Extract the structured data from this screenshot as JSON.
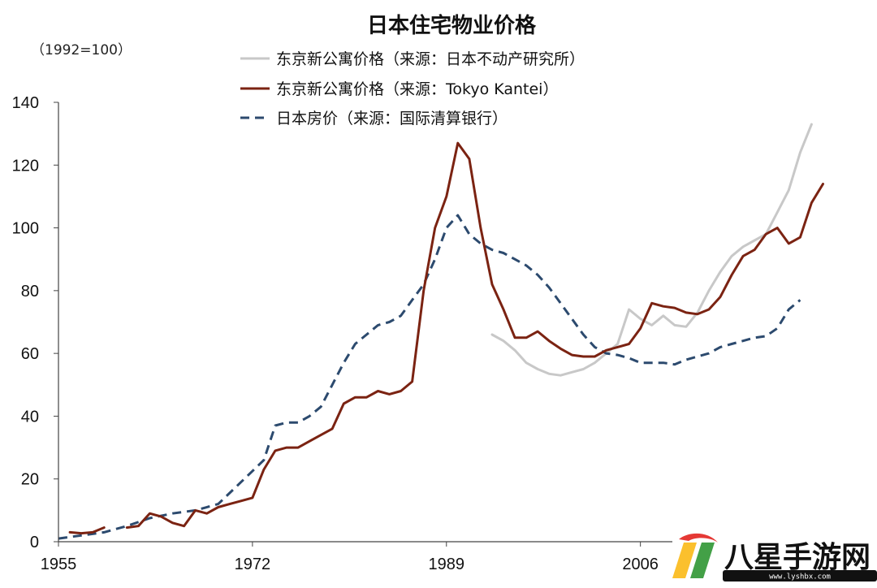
{
  "chart_data": {
    "type": "line",
    "title": "日本住宅物业价格",
    "unit_label": "（1992=100）",
    "ylim": [
      0,
      140
    ],
    "y_ticks": [
      0,
      20,
      40,
      60,
      80,
      100,
      120,
      140
    ],
    "x_range": [
      1955,
      2016
    ],
    "x_ticks": [
      1955,
      1972,
      1989,
      2006
    ],
    "grid": false,
    "legend_position": "top-center",
    "series": [
      {
        "name": "东京新公寓价格（来源：日本不动产研究所）",
        "color": "#c8c8c8",
        "style": "solid",
        "points": [
          [
            1993,
            66
          ],
          [
            1994,
            64
          ],
          [
            1995,
            61
          ],
          [
            1996,
            57
          ],
          [
            1997,
            55
          ],
          [
            1998,
            53.5
          ],
          [
            1999,
            53
          ],
          [
            2000,
            54
          ],
          [
            2001,
            55
          ],
          [
            2002,
            57
          ],
          [
            2003,
            60
          ],
          [
            2004,
            63
          ],
          [
            2005,
            74
          ],
          [
            2006,
            71
          ],
          [
            2007,
            69
          ],
          [
            2008,
            72
          ],
          [
            2009,
            69
          ],
          [
            2010,
            68.5
          ],
          [
            2011,
            73
          ],
          [
            2012,
            80
          ],
          [
            2013,
            86
          ],
          [
            2014,
            91
          ],
          [
            2015,
            94
          ],
          [
            2016,
            96
          ],
          [
            2017,
            98
          ],
          [
            2018,
            105
          ],
          [
            2019,
            112
          ],
          [
            2020,
            124
          ],
          [
            2021,
            133
          ]
        ]
      },
      {
        "name": "东京新公寓价格（来源：Tokyo Kantei）",
        "color": "#7b2312",
        "style": "solid",
        "points": [
          [
            1956,
            3
          ],
          [
            1957,
            2.7
          ],
          [
            1958,
            3
          ],
          [
            1959,
            4.5
          ],
          [
            1960,
            null
          ],
          [
            1961,
            4.5
          ],
          [
            1962,
            5
          ],
          [
            1963,
            9
          ],
          [
            1964,
            8
          ],
          [
            1965,
            6
          ],
          [
            1966,
            5
          ],
          [
            1967,
            10
          ],
          [
            1968,
            9
          ],
          [
            1969,
            11
          ],
          [
            1970,
            12
          ],
          [
            1971,
            13
          ],
          [
            1972,
            14
          ],
          [
            1973,
            23
          ],
          [
            1974,
            29
          ],
          [
            1975,
            30
          ],
          [
            1976,
            30
          ],
          [
            1977,
            32
          ],
          [
            1978,
            34
          ],
          [
            1979,
            36
          ],
          [
            1980,
            44
          ],
          [
            1981,
            46
          ],
          [
            1982,
            46
          ],
          [
            1983,
            48
          ],
          [
            1984,
            47
          ],
          [
            1985,
            48
          ],
          [
            1986,
            51
          ],
          [
            1987,
            80
          ],
          [
            1988,
            100
          ],
          [
            1989,
            110
          ],
          [
            1990,
            127
          ],
          [
            1991,
            122
          ],
          [
            1992,
            100
          ],
          [
            1993,
            82
          ],
          [
            1994,
            74
          ],
          [
            1995,
            65
          ],
          [
            1996,
            65
          ],
          [
            1997,
            67
          ],
          [
            1998,
            64
          ],
          [
            1999,
            61.5
          ],
          [
            2000,
            59.5
          ],
          [
            2001,
            59
          ],
          [
            2002,
            59
          ],
          [
            2003,
            61
          ],
          [
            2004,
            62
          ],
          [
            2005,
            63
          ],
          [
            2006,
            68
          ],
          [
            2007,
            76
          ],
          [
            2008,
            75
          ],
          [
            2009,
            74.5
          ],
          [
            2010,
            73
          ],
          [
            2011,
            72.5
          ],
          [
            2012,
            74
          ],
          [
            2013,
            78
          ],
          [
            2014,
            85
          ],
          [
            2015,
            91
          ],
          [
            2016,
            93
          ],
          [
            2017,
            98
          ],
          [
            2018,
            100
          ],
          [
            2019,
            95
          ],
          [
            2020,
            97
          ],
          [
            2021,
            108
          ],
          [
            2022,
            114
          ]
        ]
      },
      {
        "name": "日本房价（来源：国际清算银行）",
        "color": "#2c4a6e",
        "style": "dashed",
        "points": [
          [
            1955,
            1
          ],
          [
            1957,
            2
          ],
          [
            1959,
            3
          ],
          [
            1961,
            5
          ],
          [
            1963,
            7.5
          ],
          [
            1965,
            9
          ],
          [
            1967,
            10
          ],
          [
            1969,
            12
          ],
          [
            1971,
            19
          ],
          [
            1973,
            26
          ],
          [
            1974,
            37
          ],
          [
            1975,
            38
          ],
          [
            1976,
            38
          ],
          [
            1977,
            40
          ],
          [
            1978,
            43
          ],
          [
            1979,
            50
          ],
          [
            1980,
            57
          ],
          [
            1981,
            63
          ],
          [
            1982,
            66
          ],
          [
            1983,
            69
          ],
          [
            1984,
            70
          ],
          [
            1985,
            72
          ],
          [
            1986,
            77
          ],
          [
            1987,
            82
          ],
          [
            1988,
            90
          ],
          [
            1989,
            100
          ],
          [
            1990,
            104
          ],
          [
            1991,
            98
          ],
          [
            1992,
            95
          ],
          [
            1993,
            93
          ],
          [
            1994,
            92
          ],
          [
            1995,
            90
          ],
          [
            1996,
            88
          ],
          [
            1997,
            85
          ],
          [
            1998,
            81
          ],
          [
            1999,
            76
          ],
          [
            2000,
            71
          ],
          [
            2001,
            66
          ],
          [
            2002,
            62
          ],
          [
            2003,
            60
          ],
          [
            2004,
            59.5
          ],
          [
            2005,
            58.5
          ],
          [
            2006,
            57
          ],
          [
            2007,
            57
          ],
          [
            2008,
            57
          ],
          [
            2009,
            56.5
          ],
          [
            2010,
            58
          ],
          [
            2011,
            59
          ],
          [
            2012,
            60
          ],
          [
            2013,
            62
          ],
          [
            2014,
            63
          ],
          [
            2015,
            64
          ],
          [
            2016,
            65
          ],
          [
            2017,
            65.5
          ],
          [
            2018,
            68
          ],
          [
            2019,
            74
          ],
          [
            2020,
            77
          ]
        ]
      }
    ]
  },
  "watermark": {
    "brand_text": "八星手游网",
    "url_text": "www.lyshbx.com",
    "colors": [
      "#e53935",
      "#fbc02d",
      "#43a047",
      "#1e88e5"
    ]
  }
}
